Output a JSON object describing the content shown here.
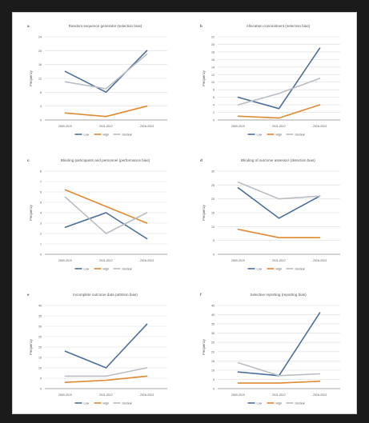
{
  "colors": {
    "low": "#4a6f9a",
    "high": "#e08a33",
    "unclear": "#b9bec4",
    "grid": "#dcdcdc",
    "axis": "#8a8a8a",
    "text": "#555555",
    "background": "#1b1b1b"
  },
  "chart_data": [
    {
      "type": "line",
      "panel_label": "a",
      "title": "Random sequence generator (selection bias)",
      "ylabel": "Frequency",
      "categories": [
        "2000-2010",
        "2011-2017",
        "2018-2023"
      ],
      "ylim": [
        0,
        24
      ],
      "yticks": [
        0,
        4,
        8,
        12,
        16,
        20,
        24
      ],
      "series": [
        {
          "name": "Low",
          "color_key": "low",
          "values": [
            14,
            8,
            20
          ]
        },
        {
          "name": "High",
          "color_key": "high",
          "values": [
            2,
            1,
            4
          ]
        },
        {
          "name": "Unclear",
          "color_key": "unclear",
          "values": [
            11,
            9,
            19
          ]
        }
      ]
    },
    {
      "type": "line",
      "panel_label": "b",
      "title": "Allocation concealment (selection bias)",
      "ylabel": "Frequency",
      "categories": [
        "2000-2010",
        "2011-2017",
        "2018-2023"
      ],
      "ylim": [
        0,
        22
      ],
      "yticks": [
        0,
        2,
        4,
        6,
        8,
        10,
        12,
        14,
        16,
        18,
        20,
        22
      ],
      "series": [
        {
          "name": "Low",
          "color_key": "low",
          "values": [
            6,
            3,
            19
          ]
        },
        {
          "name": "High",
          "color_key": "high",
          "values": [
            1,
            0.5,
            4
          ]
        },
        {
          "name": "Unclear",
          "color_key": "unclear",
          "values": [
            4,
            7,
            11
          ]
        }
      ]
    },
    {
      "type": "line",
      "panel_label": "c",
      "title": "Blinding participants and personnel (performance bias)",
      "ylabel": "Frequency",
      "categories": [
        "2000-2010",
        "2011-2017",
        "2018-2023"
      ],
      "ylim": [
        0,
        8
      ],
      "yticks": [
        0,
        1,
        2,
        3,
        4,
        5,
        6,
        7,
        8
      ],
      "series": [
        {
          "name": "Low",
          "color_key": "low",
          "values": [
            2.6,
            4,
            1.5
          ]
        },
        {
          "name": "High",
          "color_key": "high",
          "values": [
            6.2,
            4.6,
            3
          ]
        },
        {
          "name": "Unclear",
          "color_key": "unclear",
          "values": [
            5.5,
            2,
            4
          ]
        }
      ]
    },
    {
      "type": "line",
      "panel_label": "d",
      "title": "Blinding of outcome assessor (detection bias)",
      "ylabel": "Frequency",
      "categories": [
        "2000-2010",
        "2011-2017",
        "2018-2023"
      ],
      "ylim": [
        0,
        30
      ],
      "yticks": [
        0,
        5,
        10,
        15,
        20,
        25,
        30
      ],
      "series": [
        {
          "name": "Low",
          "color_key": "low",
          "values": [
            24,
            13,
            21
          ]
        },
        {
          "name": "High",
          "color_key": "high",
          "values": [
            9,
            6,
            6
          ]
        },
        {
          "name": "Unclear",
          "color_key": "unclear",
          "values": [
            26,
            20,
            21
          ]
        }
      ]
    },
    {
      "type": "line",
      "panel_label": "e",
      "title": "Incomplete outcome data (attrition bias)",
      "ylabel": "Frequency",
      "categories": [
        "2000-2010",
        "2011-2017",
        "2018-2023"
      ],
      "ylim": [
        0,
        40
      ],
      "yticks": [
        0,
        5,
        10,
        15,
        20,
        25,
        30,
        35,
        40
      ],
      "series": [
        {
          "name": "Low",
          "color_key": "low",
          "values": [
            18,
            10,
            31
          ]
        },
        {
          "name": "High",
          "color_key": "high",
          "values": [
            3,
            4,
            6
          ]
        },
        {
          "name": "Unclear",
          "color_key": "unclear",
          "values": [
            6,
            6,
            10
          ]
        }
      ]
    },
    {
      "type": "line",
      "panel_label": "f",
      "title": "Selective reporting (reporting bias)",
      "ylabel": "Frequency",
      "categories": [
        "2000-2010",
        "2011-2017",
        "2018-2023"
      ],
      "ylim": [
        0,
        45
      ],
      "yticks": [
        0,
        5,
        10,
        15,
        20,
        25,
        30,
        35,
        40,
        45
      ],
      "series": [
        {
          "name": "Low",
          "color_key": "low",
          "values": [
            9,
            7,
            41
          ]
        },
        {
          "name": "High",
          "color_key": "high",
          "values": [
            3,
            3,
            4
          ]
        },
        {
          "name": "Unclear",
          "color_key": "unclear",
          "values": [
            14,
            7,
            8
          ]
        }
      ]
    }
  ]
}
